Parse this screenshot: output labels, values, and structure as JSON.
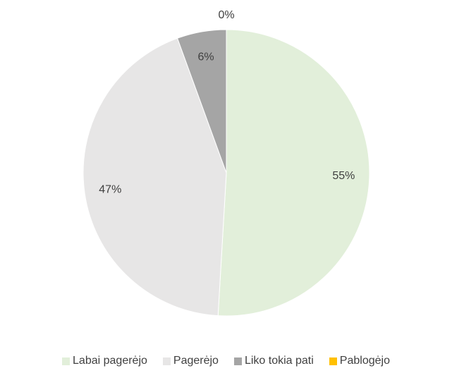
{
  "chart_data": {
    "type": "pie",
    "categories": [
      "Labai pagerėjo",
      "Pagerėjo",
      "Liko tokia pati",
      "Pablogėjo"
    ],
    "values": [
      55,
      47,
      6,
      0
    ],
    "value_labels": [
      "55%",
      "47%",
      "6%",
      "0%"
    ],
    "colors": [
      "#e2efda",
      "#e7e6e6",
      "#a5a5a5",
      "#ffc000"
    ],
    "legend": "bottom"
  }
}
